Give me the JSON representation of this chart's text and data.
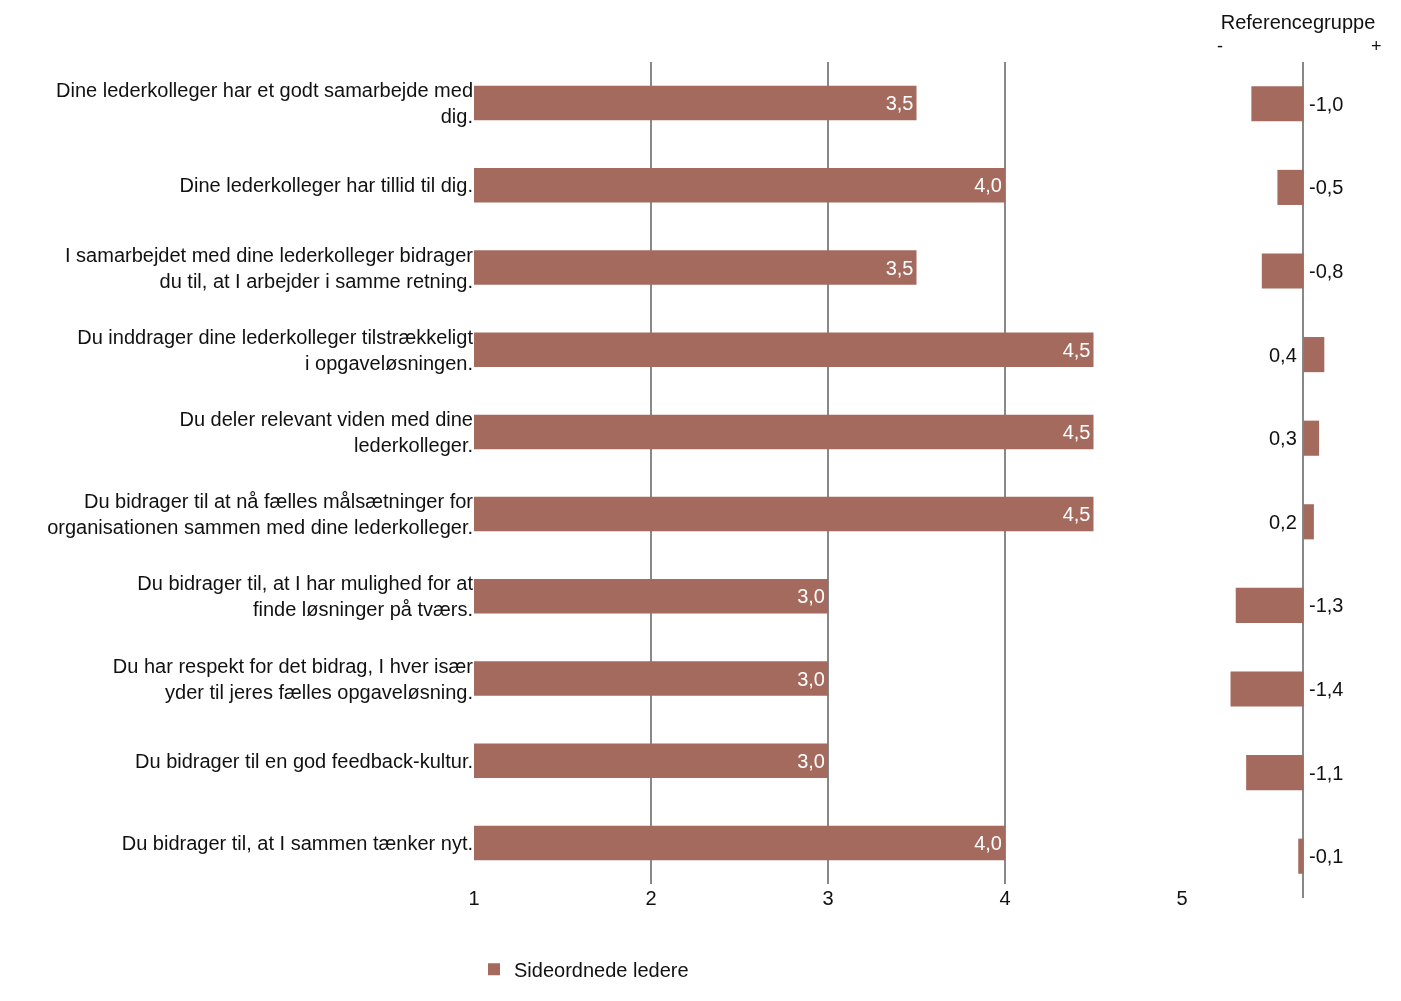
{
  "chart_data": [
    {
      "type": "bar",
      "orientation": "horizontal",
      "categories": [
        "Dine lederkolleger har et godt samarbejde med dig.",
        "Dine lederkolleger har tillid til dig.",
        "I samarbejdet med dine lederkolleger bidrager du til, at I arbejder i samme retning.",
        "Du inddrager dine lederkolleger tilstrækkeligt i opgaveløsningen.",
        "Du deler relevant viden med dine lederkolleger.",
        "Du bidrager til at nå fælles målsætninger for organisationen sammen med dine lederkolleger.",
        "Du bidrager til, at I har mulighed for at finde løsninger på tværs.",
        "Du har respekt for det bidrag, I hver især yder til jeres fælles opgaveløsning.",
        "Du bidrager til en god feedback-kultur.",
        "Du bidrager til, at I sammen tænker nyt."
      ],
      "series": [
        {
          "name": "Sideordnede ledere",
          "color": "#a56a5e",
          "values": [
            3.5,
            4.0,
            3.5,
            4.5,
            4.5,
            4.5,
            3.0,
            3.0,
            3.0,
            4.0
          ],
          "value_labels": [
            "3,5",
            "4,0",
            "3,5",
            "4,5",
            "4,5",
            "4,5",
            "3,0",
            "3,0",
            "3,0",
            "4,0"
          ]
        }
      ],
      "xlim": [
        1,
        5
      ],
      "xticks": [
        1,
        2,
        3,
        4,
        5
      ],
      "grid": "x",
      "legend": "bottom"
    },
    {
      "type": "bar",
      "orientation": "horizontal",
      "title": "Referencegruppe",
      "annotations": [
        "-",
        "+"
      ],
      "tick_labels": false,
      "categories": [
        null,
        null,
        null,
        null,
        null,
        null,
        null,
        null,
        null,
        null
      ],
      "series": [
        {
          "color": "#a56a5e",
          "values": [
            -1.0,
            -0.5,
            -0.8,
            0.4,
            0.3,
            0.2,
            -1.3,
            -1.4,
            -1.1,
            -0.1
          ],
          "value_labels": [
            "-1,0",
            "-0,5",
            "-0,8",
            "0,4",
            "0,3",
            "0,2",
            "-1,3",
            "-1,4",
            "-1,1",
            "-0,1"
          ]
        }
      ]
    }
  ]
}
